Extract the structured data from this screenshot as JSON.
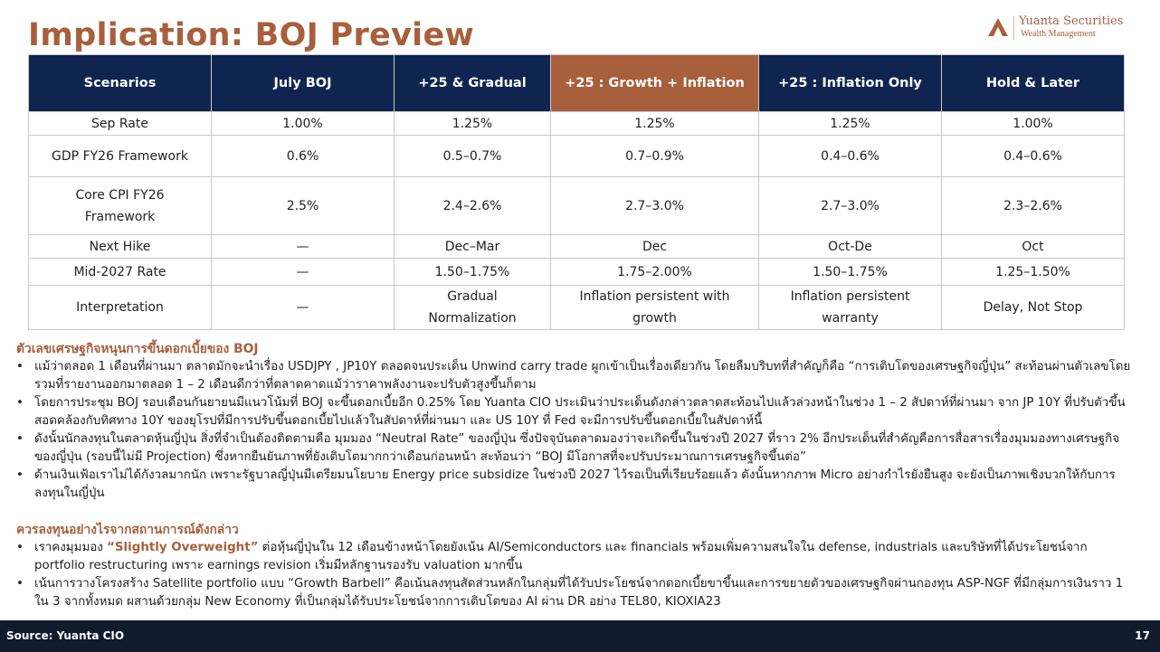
{
  "title": "Implication: BOJ Preview",
  "logo": {
    "name": "Yuanta Securities",
    "sub": "Wealth Management"
  },
  "table": {
    "headers": [
      "Scenarios",
      "July BOJ",
      "+25 & Gradual",
      "+25 : Growth + Inflation",
      "+25 : Inflation Only",
      "Hold & Later"
    ],
    "rows": [
      [
        "Sep Rate",
        "1.00%",
        "1.25%",
        "1.25%",
        "1.25%",
        "1.00%"
      ],
      [
        "GDP FY26 Framework",
        "0.6%",
        "0.5–0.7%",
        "0.7–0.9%",
        "0.4–0.6%",
        "0.4–0.6%"
      ],
      [
        "Core CPI FY26 Framework",
        "2.5%",
        "2.4–2.6%",
        "2.7–3.0%",
        "2.7–3.0%",
        "2.3–2.6%"
      ],
      [
        "Next Hike",
        "—",
        "Dec–Mar",
        "Dec",
        "Oct-De",
        "Oct"
      ],
      [
        "Mid-2027 Rate",
        "—",
        "1.50–1.75%",
        "1.75–2.00%",
        "1.50–1.75%",
        "1.25–1.50%"
      ],
      [
        "Interpretation",
        "—",
        "Gradual Normalization",
        "Inflation persistent with growth",
        "Inflation persistent warranty",
        "Delay, Not Stop"
      ]
    ]
  },
  "section1": {
    "title": "ตัวเลขเศรษฐกิจหนุนการขึ้นดอกเบี้ยของ BOJ",
    "bullets": [
      "แม้ว่าตลอด 1 เดือนที่ผ่านมา ตลาดมักจะนำเรื่อง USDJPY , JP10Y ตลอดจนประเด็น Unwind carry trade ผูกเข้าเป็นเรื่องเดียวกัน โดยลืมบริบทที่สำคัญก็คือ “การเติบโตของเศรษฐกิจญี่ปุ่น” สะท้อนผ่านตัวเลขโดยรวมที่รายงานออกมาตลอด 1 – 2 เดือนดีกว่าที่ตลาดคาดแม้ว่าราคาพลังงานจะปรับตัวสูงขึ้นก็ตาม",
      "โดยการประชุม BOJ รอบเดือนกันยายนมีแนวโน้มที่ BOJ จะขึ้นดอกเบี้ยอีก 0.25% โดย Yuanta CIO ประเมินว่าประเด็นดังกล่าวตลาดสะท้อนไปแล้วล่วงหน้าในช่วง 1 – 2 สัปดาห์ที่ผ่านมา จาก JP 10Y ที่ปรับตัวขึ้น สอดคล้องกับทิศทาง 10Y ของยุโรปที่มีการปรับขึ้นดอกเบี้ยไปแล้วในสัปดาห์ที่ผ่านมา และ US 10Y ที่ Fed จะมีการปรับขึ้นดอกเบี้ยในสัปดาห์นี้",
      "ดังนั้นนักลงทุนในตลาดหุ้นญี่ปุ่น สิ่งที่จำเป็นต้องติดตามคือ มุมมอง “Neutral Rate” ของญี่ปุ่น ซึ่งปัจจุบันตลาดมองว่าจะเกิดขึ้นในช่วงปี 2027 ที่ราว 2% อีกประเด็นที่สำคัญคือการสื่อสารเรื่องมุมมองทางเศรษฐกิจของญี่ปุ่น (รอบนี้ไม่มี Projection) ซึ่งหากยืนยันภาพที่ยังเติบโตมากกว่าเดือนก่อนหน้า สะท้อนว่า “BOJ มีโอกาสที่จะปรับประมาณการเศรษฐกิจขึ้นต่อ”",
      "ด้านเงินเฟ้อเราไม่ได้กังวลมากนัก เพราะรัฐบาลญี่ปุ่นมีเตรียมนโยบาย Energy price subsidize ในช่วงปี 2027 ไว้รอเป็นที่เรียบร้อยแล้ว ดังนั้นหากภาพ Micro อย่างกำไรยังยืนสูง จะยังเป็นภาพเชิงบวกให้กับการลงทุนในญี่ปุ่น"
    ]
  },
  "section2": {
    "title": "ควรลงทุนอย่างไรจากสถานการณ์ดังกล่าว",
    "b1_pre": "เราคงมุมมอง ",
    "b1_emph": "“Slightly Overweight”",
    "b1_post": " ต่อหุ้นญี่ปุ่นใน 12 เดือนข้างหน้าโดยยังเน้น AI/Semiconductors และ financials พร้อมเพิ่มความสนใจใน defense, industrials และบริษัทที่ได้ประโยชน์จาก portfolio restructuring เพราะ earnings revision เริ่มมีหลักฐานรองรับ valuation มากขึ้น",
    "b2": "เน้นการวางโครงสร้าง Satellite portfolio แบบ “Growth Barbell” คือเน้นลงทุนสัดส่วนหลักในกลุ่มที่ได้รับประโยชน์จากดอกเบี้ยขาขึ้นและการขยายตัวของเศรษฐกิจผ่านกองทุน ASP-NGF ที่มีกลุ่มการเงินราว 1 ใน 3 จากทั้งหมด ผสานด้วยกลุ่ม New Economy ที่เป็นกลุ่มได้รับประโยชน์จากการเติบโตของ AI ผ่าน DR อย่าง TEL80, KIOXIA23"
  },
  "bullet_symbol": "•",
  "footer": {
    "source": "Source: Yuanta CIO",
    "page": "17"
  },
  "colors": {
    "accent": "#a85f3c",
    "navy": "#0f2550",
    "footer": "#111b2e"
  }
}
